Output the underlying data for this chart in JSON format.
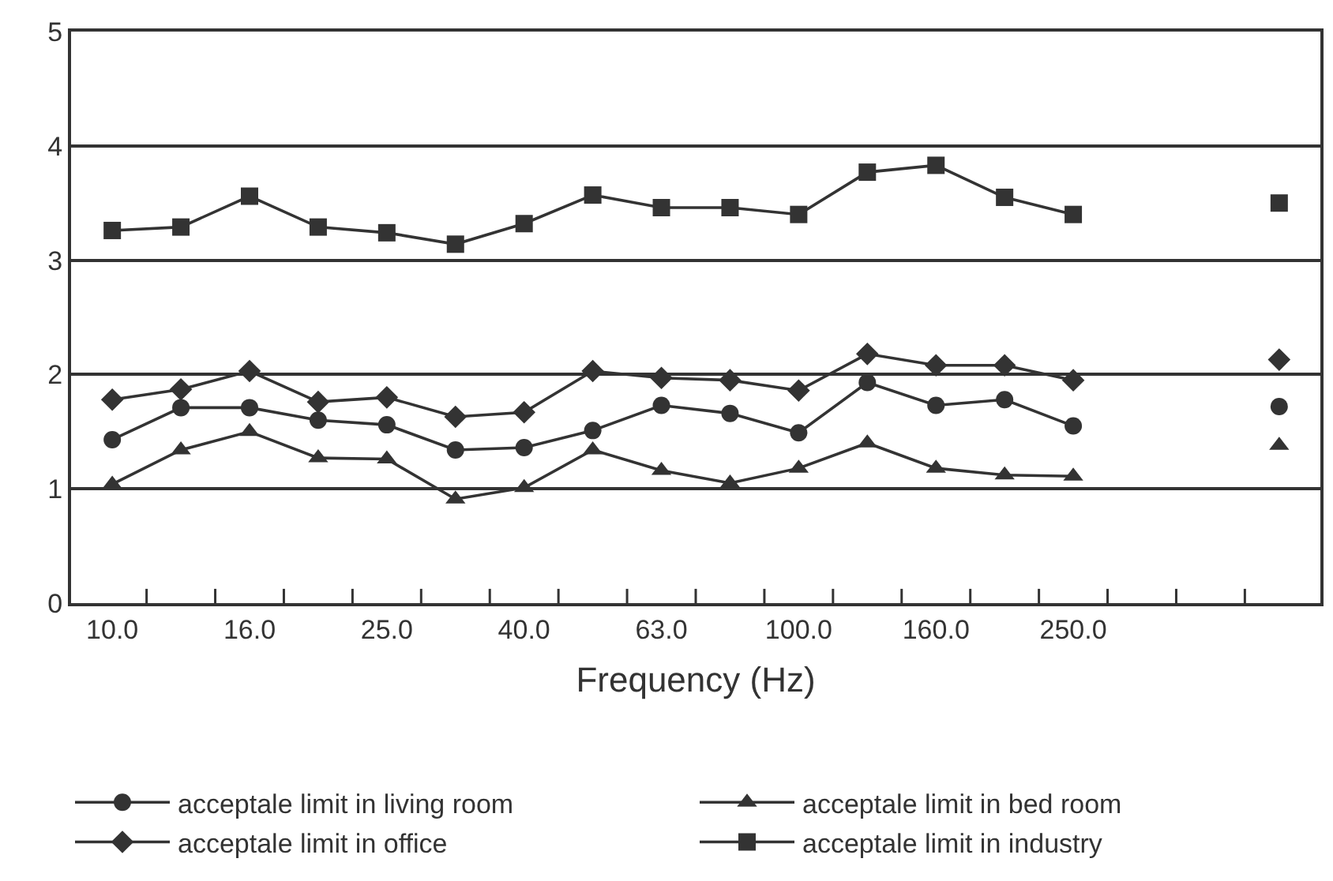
{
  "chart_data": {
    "type": "line",
    "xlabel": "Frequency (Hz)",
    "categories": [
      "10.0",
      null,
      "16.0",
      null,
      "25.0",
      null,
      "40.0",
      null,
      "63.0",
      null,
      "100.0",
      null,
      "160.0",
      null,
      "250.0",
      null,
      null,
      null
    ],
    "series": [
      {
        "name": "acceptale limit in living room",
        "color": "#333333",
        "marker": "circle",
        "values": [
          1.43,
          1.71,
          1.71,
          1.6,
          1.56,
          1.34,
          1.36,
          1.51,
          1.73,
          1.66,
          1.49,
          1.93,
          1.73,
          1.78,
          1.55,
          null,
          null,
          1.72
        ]
      },
      {
        "name": "acceptale limit in bed room",
        "color": "#333333",
        "marker": "triangle",
        "values": [
          1.04,
          1.34,
          1.5,
          1.27,
          1.26,
          0.91,
          1.01,
          1.34,
          1.16,
          1.05,
          1.18,
          1.4,
          1.18,
          1.12,
          1.11,
          null,
          null,
          1.38
        ]
      },
      {
        "name": "acceptale limit in office",
        "color": "#333333",
        "marker": "diamond",
        "values": [
          1.78,
          1.87,
          2.03,
          1.76,
          1.8,
          1.63,
          1.67,
          2.03,
          1.97,
          1.95,
          1.86,
          2.18,
          2.08,
          2.08,
          1.95,
          null,
          null,
          2.13
        ]
      },
      {
        "name": "acceptale limit in industry",
        "color": "#333333",
        "marker": "square",
        "values": [
          3.26,
          3.29,
          3.56,
          3.29,
          3.24,
          3.14,
          3.32,
          3.57,
          3.46,
          3.46,
          3.4,
          3.77,
          3.83,
          3.55,
          3.4,
          null,
          null,
          3.5
        ]
      }
    ],
    "ylim": [
      0,
      5
    ],
    "yticks": [
      0,
      1,
      2,
      3,
      4,
      5
    ],
    "grid": "y",
    "legend": "bottom",
    "line_style": "solid"
  }
}
